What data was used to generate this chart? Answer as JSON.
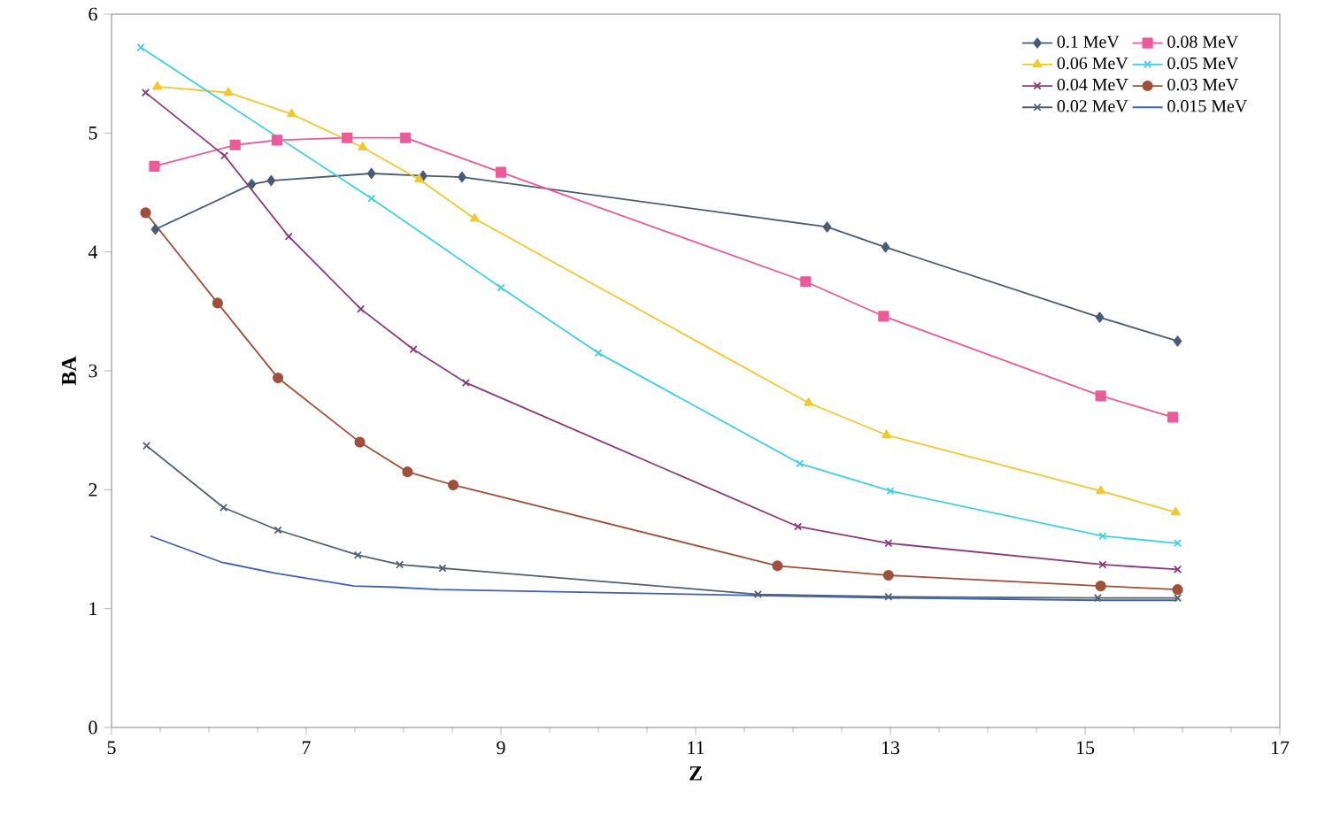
{
  "chart_data": {
    "type": "line",
    "xlabel": "Z",
    "ylabel": "BA",
    "xlim": [
      5,
      17
    ],
    "ylim": [
      0,
      6
    ],
    "xticks": [
      5,
      7,
      9,
      11,
      13,
      15,
      17
    ],
    "yticks": [
      0,
      1,
      2,
      3,
      4,
      5,
      6
    ],
    "grid": false,
    "legend": "top right",
    "series": [
      {
        "name": "0.1 MeV",
        "color": "#4a5a78",
        "marker": "diamond",
        "x": [
          5.45,
          6.44,
          6.64,
          7.67,
          8.2,
          8.6,
          12.35,
          12.95,
          15.15,
          15.95
        ],
        "values": [
          4.19,
          4.57,
          4.6,
          4.66,
          4.64,
          4.63,
          4.21,
          4.04,
          3.45,
          3.25
        ]
      },
      {
        "name": "0.08 MeV",
        "color": "#ec5a9a",
        "marker": "square",
        "x": [
          5.44,
          6.27,
          6.7,
          7.42,
          8.02,
          9.0,
          12.13,
          12.93,
          15.16,
          15.9
        ],
        "values": [
          4.72,
          4.9,
          4.94,
          4.96,
          4.96,
          4.67,
          3.75,
          3.46,
          2.79,
          2.61
        ]
      },
      {
        "name": "0.06 MeV",
        "color": "#f0c830",
        "marker": "triangle",
        "x": [
          5.47,
          6.2,
          6.85,
          7.58,
          8.16,
          8.73,
          12.16,
          12.96,
          15.16,
          15.93
        ],
        "values": [
          5.39,
          5.34,
          5.16,
          4.88,
          4.61,
          4.28,
          2.73,
          2.46,
          1.99,
          1.81
        ]
      },
      {
        "name": "0.05 MeV",
        "color": "#40d0e0",
        "marker": "cross",
        "x": [
          5.3,
          7.67,
          9.0,
          10.0,
          12.07,
          13.0,
          15.18,
          15.95
        ],
        "values": [
          5.72,
          4.45,
          3.7,
          3.15,
          2.22,
          1.99,
          1.61,
          1.55
        ]
      },
      {
        "name": "0.04 MeV",
        "color": "#8a3a7a",
        "marker": "cross",
        "x": [
          5.35,
          6.16,
          6.82,
          7.56,
          8.1,
          8.64,
          12.05,
          12.98,
          15.18,
          15.95
        ],
        "values": [
          5.34,
          4.81,
          4.13,
          3.52,
          3.18,
          2.9,
          1.69,
          1.55,
          1.37,
          1.33
        ]
      },
      {
        "name": "0.03 MeV",
        "color": "#a0503a",
        "marker": "circle",
        "x": [
          5.35,
          6.09,
          6.71,
          7.55,
          8.04,
          8.51,
          11.84,
          12.98,
          15.16,
          15.95
        ],
        "values": [
          4.33,
          3.57,
          2.94,
          2.4,
          2.15,
          2.04,
          1.36,
          1.28,
          1.19,
          1.16
        ]
      },
      {
        "name": "0.02 MeV",
        "color": "#506070",
        "marker": "cross",
        "x": [
          5.36,
          6.15,
          6.71,
          7.53,
          7.96,
          8.4,
          11.64,
          12.98,
          15.13,
          15.95
        ],
        "values": [
          2.37,
          1.85,
          1.66,
          1.45,
          1.37,
          1.34,
          1.12,
          1.1,
          1.09,
          1.09
        ]
      },
      {
        "name": "0.015 MeV",
        "color": "#4060b0",
        "marker": "none",
        "x": [
          5.4,
          6.13,
          6.67,
          7.49,
          7.9,
          8.36,
          12.98,
          15.13,
          15.95
        ],
        "values": [
          1.61,
          1.39,
          1.3,
          1.19,
          1.18,
          1.16,
          1.09,
          1.07,
          1.07
        ]
      }
    ]
  }
}
